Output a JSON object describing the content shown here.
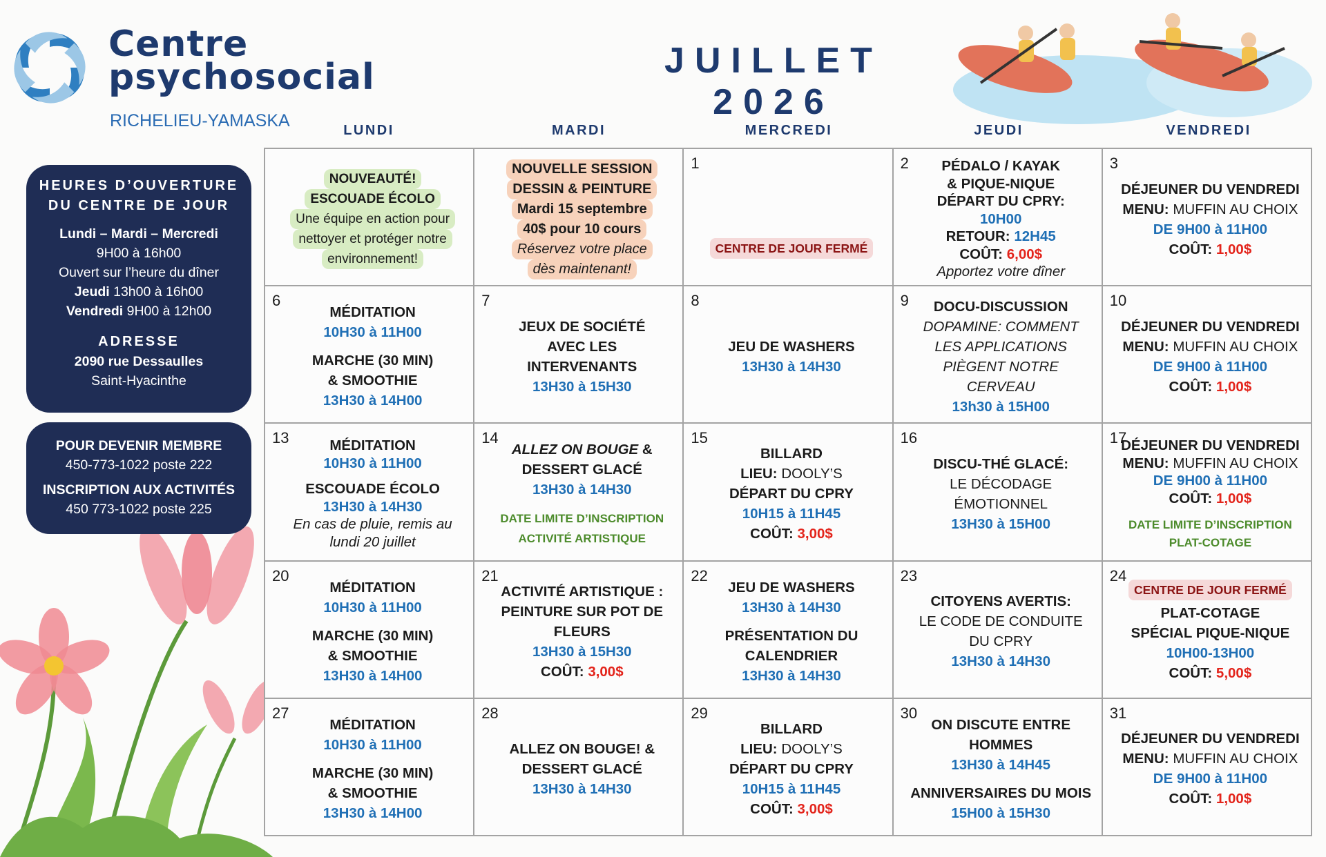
{
  "header": {
    "logo_line1": "Centre",
    "logo_line2": "psychosocial",
    "logo_subtitle": "RICHELIEU-YAMASKA",
    "title": "JUILLET 2026"
  },
  "weekdays": [
    "LUNDI",
    "MARDI",
    "MERCREDI",
    "JEUDI",
    "VENDREDI"
  ],
  "hours_panel": {
    "title_line1": "HEURES D’OUVERTURE",
    "title_line2": "DU CENTRE DE JOUR",
    "days_line": "Lundi – Mardi – Mercredi",
    "days_hours": "9H00 à 16h00",
    "lunch_note": "Ouvert sur l’heure du dîner",
    "thursday": [
      "Jeudi",
      "13h00 à 16h00"
    ],
    "friday": [
      "Vendredi",
      "9H00 à 12h00"
    ],
    "address_title": "ADRESSE",
    "address_street": "2090 rue Dessaulles",
    "address_city": "Saint-Hyacinthe"
  },
  "membership_panel": {
    "member_title": "POUR DEVENIR MEMBRE",
    "member_phone": "450-773-1022 poste 222",
    "signup_title": "INSCRIPTION AUX ACTIVITÉS",
    "signup_phone": "450 773-1022 poste 225"
  },
  "calendar": {
    "weeks": [
      [
        {
          "lines": [
            [
              "NOUVEAUTÉ!"
            ],
            [
              "ESCOUADE ÉCOLO"
            ],
            [
              "Une équipe en action pour"
            ],
            [
              "nettoyer et protéger notre"
            ],
            [
              "environnement!"
            ]
          ]
        },
        {
          "lines": [
            [
              "NOUVELLE SESSION"
            ],
            [
              "DESSIN & PEINTURE"
            ],
            [
              "Mardi 15 septembre"
            ],
            [
              "40$ pour 10 cours"
            ],
            [
              "Réservez votre place"
            ],
            [
              "dès maintenant!"
            ]
          ]
        },
        {
          "day": 1,
          "lines": [
            [
              "CENTRE DE JOUR FERMÉ"
            ]
          ]
        },
        {
          "day": 2,
          "lines": [
            [
              "PÉDALO / KAYAK"
            ],
            [
              "& PIQUE-NIQUE"
            ],
            [
              "DÉPART DU CPRY:"
            ],
            [
              "10H00"
            ],
            [
              "RETOUR:",
              "12H45"
            ],
            [
              "COÛT:",
              "6,00$"
            ],
            [
              "Apportez votre dîner"
            ]
          ]
        },
        {
          "day": 3,
          "lines": [
            [
              "DÉJEUNER DU VENDREDI"
            ],
            [
              "MENU:",
              "MUFFIN AU CHOIX"
            ],
            [
              "DE 9H00 à 11H00"
            ],
            [
              "COÛT:",
              "1,00$"
            ]
          ]
        }
      ],
      [
        {
          "day": 6,
          "lines": [
            [
              "MÉDITATION"
            ],
            [
              "10H30 à 11H00"
            ],
            [
              "MARCHE (30 MIN)"
            ],
            [
              "& SMOOTHIE"
            ],
            [
              "13H30 à 14H00"
            ]
          ]
        },
        {
          "day": 7,
          "lines": [
            [
              "JEUX DE SOCIÉTÉ"
            ],
            [
              "AVEC LES"
            ],
            [
              "INTERVENANTS"
            ],
            [
              "13H30 à 15H30"
            ]
          ]
        },
        {
          "day": 8,
          "lines": [
            [
              "JEU DE WASHERS"
            ],
            [
              "13H30 à 14H30"
            ]
          ]
        },
        {
          "day": 9,
          "lines": [
            [
              "DOCU-DISCUSSION"
            ],
            [
              "DOPAMINE: COMMENT"
            ],
            [
              "LES APPLICATIONS"
            ],
            [
              "PIÈGENT NOTRE"
            ],
            [
              "CERVEAU"
            ],
            [
              "13h30 à 15H00"
            ]
          ]
        },
        {
          "day": 10,
          "lines": [
            [
              "DÉJEUNER DU VENDREDI"
            ],
            [
              "MENU:",
              "MUFFIN AU CHOIX"
            ],
            [
              "DE 9H00 à 11H00"
            ],
            [
              "COÛT:",
              "1,00$"
            ]
          ]
        }
      ],
      [
        {
          "day": 13,
          "lines": [
            [
              "MÉDITATION"
            ],
            [
              "10H30 à 11H00"
            ],
            [
              "ESCOUADE ÉCOLO"
            ],
            [
              "13H30 à 14H30"
            ],
            [
              "En cas de pluie, remis au"
            ],
            [
              "lundi 20 juillet"
            ]
          ]
        },
        {
          "day": 14,
          "lines": [
            [
              "ALLEZ ON BOUGE",
              "&"
            ],
            [
              "DESSERT GLACÉ"
            ],
            [
              "13H30 à 14H30"
            ],
            [
              "DATE LIMITE D’INSCRIPTION"
            ],
            [
              "ACTIVITÉ ARTISTIQUE"
            ]
          ]
        },
        {
          "day": 15,
          "lines": [
            [
              "BILLARD"
            ],
            [
              "LIEU:",
              "DOOLY’S"
            ],
            [
              "DÉPART DU CPRY"
            ],
            [
              "10H15 à 11H45"
            ],
            [
              "COÛT:",
              "3,00$"
            ]
          ]
        },
        {
          "day": 16,
          "lines": [
            [
              "DISCU-THÉ GLACÉ:"
            ],
            [
              "LE DÉCODAGE"
            ],
            [
              "ÉMOTIONNEL"
            ],
            [
              "13H30 à 15H00"
            ]
          ]
        },
        {
          "day": 17,
          "lines": [
            [
              "DÉJEUNER DU VENDREDI"
            ],
            [
              "MENU:",
              "MUFFIN AU CHOIX"
            ],
            [
              "DE 9H00 à 11H00"
            ],
            [
              "COÛT:",
              "1,00$"
            ],
            [
              "DATE LIMITE D’INSCRIPTION"
            ],
            [
              "PLAT-COTAGE"
            ]
          ]
        }
      ],
      [
        {
          "day": 20,
          "lines": [
            [
              "MÉDITATION"
            ],
            [
              "10H30 à 11H00"
            ],
            [
              "MARCHE (30 MIN)"
            ],
            [
              "& SMOOTHIE"
            ],
            [
              "13H30 à 14H00"
            ]
          ]
        },
        {
          "day": 21,
          "lines": [
            [
              "ACTIVITÉ ARTISTIQUE :"
            ],
            [
              "PEINTURE SUR POT DE"
            ],
            [
              "FLEURS"
            ],
            [
              "13H30 à 15H30"
            ],
            [
              "COÛT:",
              "3,00$"
            ]
          ]
        },
        {
          "day": 22,
          "lines": [
            [
              "JEU DE WASHERS"
            ],
            [
              "13H30 à 14H30"
            ],
            [
              "PRÉSENTATION DU"
            ],
            [
              "CALENDRIER"
            ],
            [
              "13H30 à 14H30"
            ]
          ]
        },
        {
          "day": 23,
          "lines": [
            [
              "CITOYENS AVERTIS:"
            ],
            [
              "LE CODE DE CONDUITE"
            ],
            [
              "DU CPRY"
            ],
            [
              "13H30 à 14H30"
            ]
          ]
        },
        {
          "day": 24,
          "lines": [
            [
              "CENTRE DE JOUR FERMÉ"
            ],
            [
              "PLAT-COTAGE"
            ],
            [
              "SPÉCIAL PIQUE-NIQUE"
            ],
            [
              "10H00-13H00"
            ],
            [
              "COÛT:",
              "5,00$"
            ]
          ]
        }
      ],
      [
        {
          "day": 27,
          "lines": [
            [
              "MÉDITATION"
            ],
            [
              "10H30 à 11H00"
            ],
            [
              "MARCHE (30 MIN)"
            ],
            [
              "& SMOOTHIE"
            ],
            [
              "13H30 à 14H00"
            ]
          ]
        },
        {
          "day": 28,
          "lines": [
            [
              "ALLEZ ON BOUGE! &"
            ],
            [
              "DESSERT GLACÉ"
            ],
            [
              "13H30 à 14H30"
            ]
          ]
        },
        {
          "day": 29,
          "lines": [
            [
              "BILLARD"
            ],
            [
              "LIEU:",
              "DOOLY’S"
            ],
            [
              "DÉPART DU CPRY"
            ],
            [
              "10H15 à 11H45"
            ],
            [
              "COÛT:",
              "3,00$"
            ]
          ]
        },
        {
          "day": 30,
          "lines": [
            [
              "ON DISCUTE ENTRE"
            ],
            [
              "HOMMES"
            ],
            [
              "13H30 à 14H45"
            ],
            [
              "ANNIVERSAIRES DU MOIS"
            ],
            [
              "15H00 à 15H30"
            ]
          ]
        },
        {
          "day": 31,
          "lines": [
            [
              "DÉJEUNER DU VENDREDI"
            ],
            [
              "MENU:",
              "MUFFIN AU CHOIX"
            ],
            [
              "DE 9H00 à 11H00"
            ],
            [
              "COÛT:",
              "1,00$"
            ]
          ]
        }
      ]
    ]
  }
}
